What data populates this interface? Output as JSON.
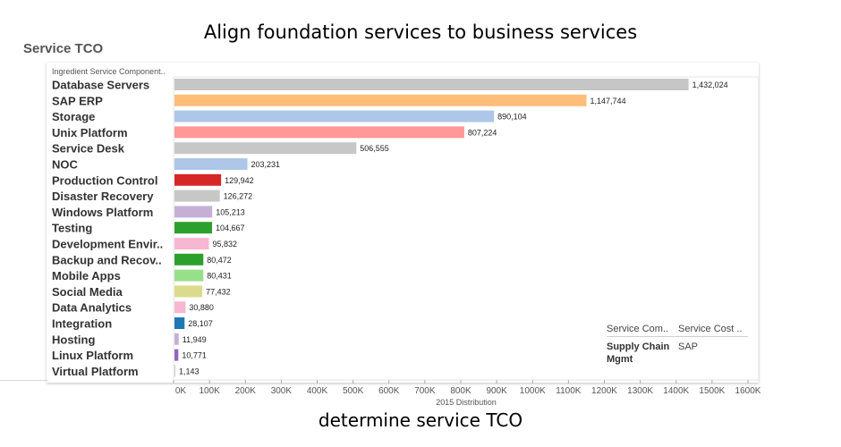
{
  "annotations": {
    "top": "Align foundation services to business services",
    "bottom": "determine service TCO"
  },
  "sheet_title": "Service TCO",
  "tooltip": {
    "headers": [
      "Service Com..",
      "Service Cost .."
    ],
    "value_col1": "Supply Chain Mgmt",
    "value_col2": "SAP"
  },
  "chart_data": {
    "type": "bar",
    "orientation": "horizontal",
    "row_header": "Ingredient Service Component..",
    "xlabel": "2015 Distribution",
    "xlim": [
      0,
      1600000
    ],
    "x_ticks": [
      0,
      100000,
      200000,
      300000,
      400000,
      500000,
      600000,
      700000,
      800000,
      900000,
      1000000,
      1100000,
      1200000,
      1300000,
      1400000,
      1500000,
      1600000
    ],
    "x_tick_labels": [
      "0K",
      "100K",
      "200K",
      "300K",
      "400K",
      "500K",
      "600K",
      "700K",
      "800K",
      "900K",
      "1000K",
      "1100K",
      "1200K",
      "1300K",
      "1400K",
      "1500K",
      "1600K"
    ],
    "grid": false,
    "bars": [
      {
        "category": "Database Servers",
        "value": 1432024,
        "label": "1,432,024",
        "color": "#c6c6c6"
      },
      {
        "category": "SAP ERP",
        "value": 1147744,
        "label": "1,147,744",
        "color": "#ffbd7a"
      },
      {
        "category": "Storage",
        "value": 890104,
        "label": "890,104",
        "color": "#aec7e8"
      },
      {
        "category": "Unix Platform",
        "value": 807224,
        "label": "807,224",
        "color": "#ff9896"
      },
      {
        "category": "Service Desk",
        "value": 506555,
        "label": "506,555",
        "color": "#c7c7c7"
      },
      {
        "category": "NOC",
        "value": 203231,
        "label": "203,231",
        "color": "#aec7e8"
      },
      {
        "category": "Production Control",
        "value": 129942,
        "label": "129,942",
        "color": "#d62728"
      },
      {
        "category": "Disaster Recovery",
        "value": 126272,
        "label": "126,272",
        "color": "#c7c7c7"
      },
      {
        "category": "Windows Platform",
        "value": 105213,
        "label": "105,213",
        "color": "#c5b0d5"
      },
      {
        "category": "Testing",
        "value": 104667,
        "label": "104,667",
        "color": "#2ca02c"
      },
      {
        "category": "Development Envir..",
        "value": 95832,
        "label": "95,832",
        "color": "#f7b6d2"
      },
      {
        "category": "Backup and Recov..",
        "value": 80472,
        "label": "80,472",
        "color": "#2ca02c"
      },
      {
        "category": "Mobile Apps",
        "value": 80431,
        "label": "80,431",
        "color": "#98df8a"
      },
      {
        "category": "Social Media",
        "value": 77432,
        "label": "77,432",
        "color": "#dbdb8d"
      },
      {
        "category": "Data Analytics",
        "value": 30880,
        "label": "30,880",
        "color": "#f7b6d2"
      },
      {
        "category": "Integration",
        "value": 28107,
        "label": "28,107",
        "color": "#1f77b4"
      },
      {
        "category": "Hosting",
        "value": 11949,
        "label": "11,949",
        "color": "#c5b0d5"
      },
      {
        "category": "Linux Platform",
        "value": 10771,
        "label": "10,771",
        "color": "#9467bd"
      },
      {
        "category": "Virtual Platform",
        "value": 1143,
        "label": "1,143",
        "color": "#c7c7c7"
      }
    ]
  }
}
